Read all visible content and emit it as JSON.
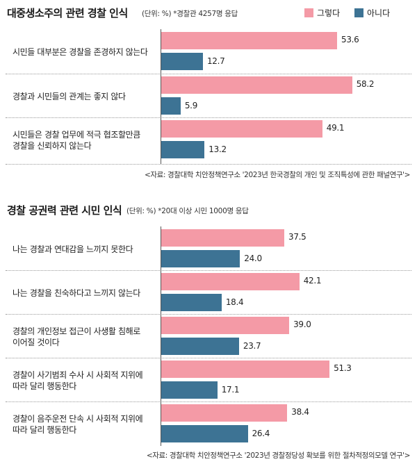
{
  "colors": {
    "yes": "#f49aa6",
    "no": "#3d7394"
  },
  "legend": {
    "yes": "그렇다",
    "no": "아니다"
  },
  "chart_data": [
    {
      "type": "bar",
      "title": "대중생소주의 관련 경찰 인식",
      "unit": "(단위: %) *경찰관 4257명 응답",
      "categories": [
        "시민들 대부분은 경찰을 존경하지 않는다",
        "경찰과 시민들의 관계는 좋지 않다",
        "시민들은 경찰 업무에 적극 협조할만큼\n경찰을 신뢰하지 않는다"
      ],
      "series": [
        {
          "name": "그렇다",
          "values": [
            53.6,
            58.2,
            49.1
          ]
        },
        {
          "name": "아니다",
          "values": [
            12.7,
            5.9,
            13.2
          ]
        }
      ],
      "labels_yes": [
        "53.6",
        "58.2",
        "49.1"
      ],
      "labels_no": [
        "12.7",
        "5.9",
        "13.2"
      ],
      "source": "<자료: 경찰대학 치안정책연구소 '2023년 한국경찰의 개인 및 조직특성에 관한 패널연구'>"
    },
    {
      "type": "bar",
      "title": "경찰 공권력 관련 시민 인식",
      "unit": "(단위: %) *20대 이상 시민 1000명 응답",
      "categories": [
        "나는 경찰과 연대감을 느끼지 못한다",
        "나는 경찰을 친숙하다고 느끼지 않는다",
        "경찰의 개인정보 접근이 사생활 침해로\n이어질 것이다",
        "경찰이 사기범죄 수사 시 사회적 지위에\n따라 달리 행동한다",
        "경찰이 음주운전 단속 시 사회적 지위에\n따라 달리 행동한다"
      ],
      "series": [
        {
          "name": "그렇다",
          "values": [
            37.5,
            42.1,
            39.0,
            51.3,
            38.4
          ]
        },
        {
          "name": "아니다",
          "values": [
            24.0,
            18.4,
            23.7,
            17.1,
            26.4
          ]
        }
      ],
      "labels_yes": [
        "37.5",
        "42.1",
        "39.0",
        "51.3",
        "38.4"
      ],
      "labels_no": [
        "24.0",
        "18.4",
        "23.7",
        "17.1",
        "26.4"
      ],
      "source": "<자료: 경찰대학 치안정책연구소 '2023년 경찰정당성 확보를 위한 절차적정의모델 연구'>"
    }
  ]
}
